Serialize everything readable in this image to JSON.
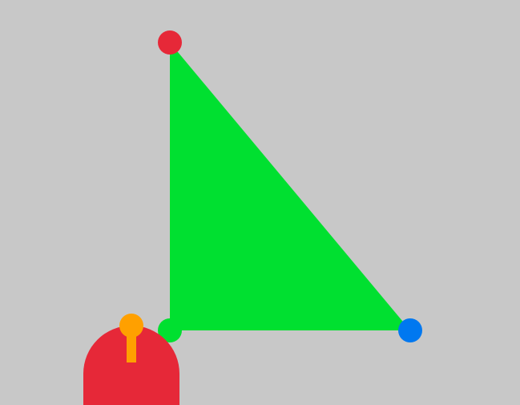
{
  "scene": {
    "background_color": "#c8c8c8",
    "triangle": {
      "fill_color": "#00e030"
    },
    "vertices": [
      {
        "name": "top-vertex",
        "color": "#e62838"
      },
      {
        "name": "bottom-left-vertex",
        "color": "#00e030"
      },
      {
        "name": "bottom-right-vertex",
        "color": "#0078f0"
      }
    ],
    "cursor": {
      "icon": "robot-arm-cursor-icon",
      "body_color": "#e62838",
      "stick_color": "#ffa000",
      "knob_color": "#ffa000"
    }
  }
}
